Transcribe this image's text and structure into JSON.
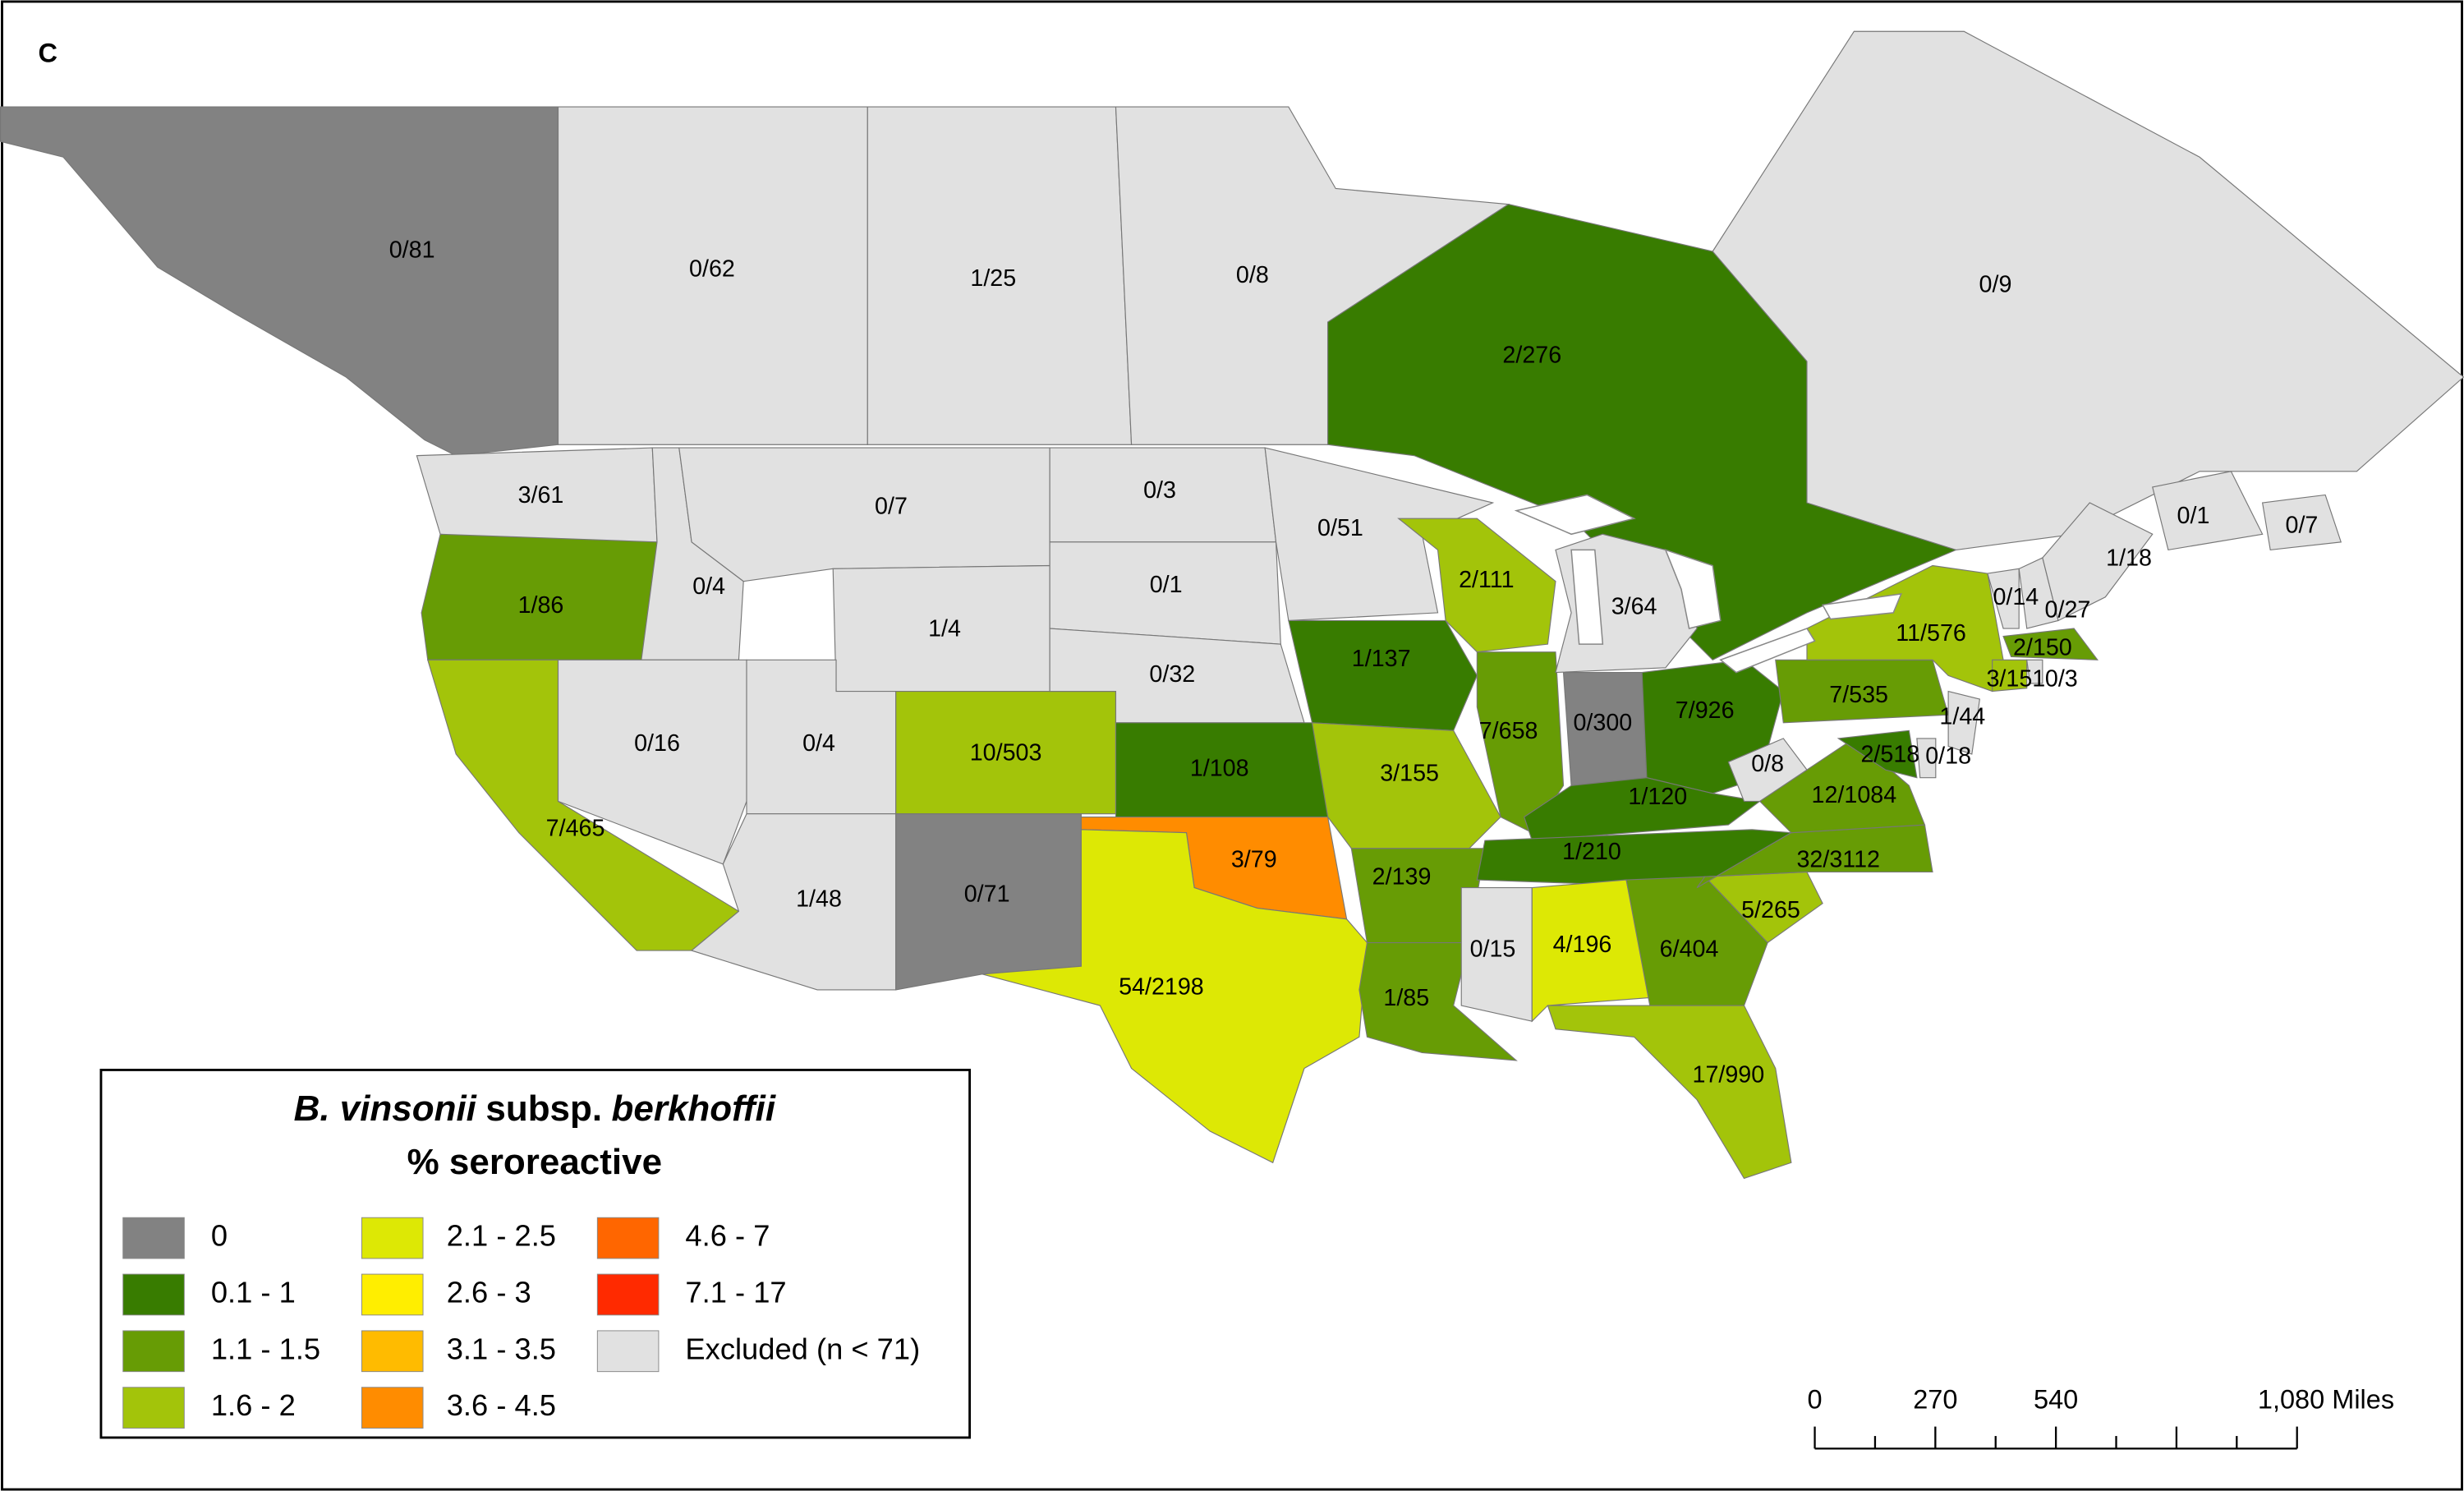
{
  "panel_label": "C",
  "regions": [
    {
      "label": "0/81",
      "color": "#828282"
    },
    {
      "label": "0/62",
      "color": "#e1e1e1"
    },
    {
      "label": "1/25",
      "color": "#e1e1e1"
    },
    {
      "label": "0/8",
      "color": "#e1e1e1"
    },
    {
      "label": "2/276",
      "color": "#387c00"
    },
    {
      "label": "0/9",
      "color": "#e1e1e1"
    },
    {
      "label": "0/1",
      "color": "#e1e1e1"
    },
    {
      "label": "0/7",
      "color": "#e1e1e1"
    },
    {
      "label": "3/61",
      "color": "#e1e1e1"
    },
    {
      "label": "1/86",
      "color": "#679c05"
    },
    {
      "label": "7/465",
      "color": "#a3c40a"
    },
    {
      "label": "0/4",
      "color": "#e1e1e1"
    },
    {
      "label": "0/16",
      "color": "#e1e1e1"
    },
    {
      "label": "0/7",
      "color": "#e1e1e1"
    },
    {
      "label": "1/4",
      "color": "#e1e1e1"
    },
    {
      "label": "0/4",
      "color": "#e1e1e1"
    },
    {
      "label": "1/48",
      "color": "#e1e1e1"
    },
    {
      "label": "10/503",
      "color": "#a3c40a"
    },
    {
      "label": "0/71",
      "color": "#828282"
    },
    {
      "label": "0/3",
      "color": "#e1e1e1"
    },
    {
      "label": "0/1",
      "color": "#e1e1e1"
    },
    {
      "label": "0/32",
      "color": "#e1e1e1"
    },
    {
      "label": "1/108",
      "color": "#387c00"
    },
    {
      "label": "3/79",
      "color": "#ff8c00"
    },
    {
      "label": "54/2198",
      "color": "#dde805"
    },
    {
      "label": "0/51",
      "color": "#e1e1e1"
    },
    {
      "label": "1/137",
      "color": "#387c00"
    },
    {
      "label": "3/155",
      "color": "#a3c40a"
    },
    {
      "label": "2/139",
      "color": "#679c05"
    },
    {
      "label": "1/85",
      "color": "#679c05"
    },
    {
      "label": "2/111",
      "color": "#a3c40a"
    },
    {
      "label": "7/658",
      "color": "#679c05"
    },
    {
      "label": "3/64",
      "color": "#e1e1e1"
    },
    {
      "label": "0/300",
      "color": "#828282"
    },
    {
      "label": "7/926",
      "color": "#387c00"
    },
    {
      "label": "1/120",
      "color": "#387c00"
    },
    {
      "label": "1/210",
      "color": "#387c00"
    },
    {
      "label": "0/15",
      "color": "#e1e1e1"
    },
    {
      "label": "4/196",
      "color": "#dde805"
    },
    {
      "label": "6/404",
      "color": "#679c05"
    },
    {
      "label": "17/990",
      "color": "#a3c40a"
    },
    {
      "label": "5/265",
      "color": "#a3c40a"
    },
    {
      "label": "32/3112",
      "color": "#679c05"
    },
    {
      "label": "12/1084",
      "color": "#679c05"
    },
    {
      "label": "0/8",
      "color": "#e1e1e1"
    },
    {
      "label": "7/535",
      "color": "#679c05"
    },
    {
      "label": "11/576",
      "color": "#a3c40a"
    },
    {
      "label": "1/44",
      "color": "#e1e1e1"
    },
    {
      "label": "2/518",
      "color": "#387c00"
    },
    {
      "label": "0/18",
      "color": "#e1e1e1"
    },
    {
      "label": "0/14",
      "color": "#e1e1e1"
    },
    {
      "label": "0/27",
      "color": "#e1e1e1"
    },
    {
      "label": "1/18",
      "color": "#e1e1e1"
    },
    {
      "label": "2/150",
      "color": "#679c05"
    },
    {
      "label": "3/151",
      "color": "#a3c40a"
    },
    {
      "label": "0/3",
      "color": "#e1e1e1"
    }
  ],
  "legend": {
    "title": [
      "B. vinsonii",
      "subsp.",
      "berkhoffii"
    ],
    "subtitle": "% seroreactive",
    "items": [
      {
        "label": "0",
        "color": "#828282"
      },
      {
        "label": "0.1 - 1",
        "color": "#387c00"
      },
      {
        "label": "1.1 - 1.5",
        "color": "#679c05"
      },
      {
        "label": "1.6 - 2",
        "color": "#a3c40a"
      },
      {
        "label": "2.1 - 2.5",
        "color": "#dde805"
      },
      {
        "label": "2.6 - 3",
        "color": "#ffee00"
      },
      {
        "label": "3.1 - 3.5",
        "color": "#ffbb00"
      },
      {
        "label": "3.6 - 4.5",
        "color": "#ff8c00"
      },
      {
        "label": "4.6 - 7",
        "color": "#ff6600"
      },
      {
        "label": "7.1 - 17",
        "color": "#ff2a00"
      },
      {
        "label": "Excluded (n < 71)",
        "color": "#e1e1e1"
      }
    ]
  },
  "scale_bar": {
    "labels": [
      "0",
      "270",
      "540",
      "1,080 Miles"
    ]
  }
}
